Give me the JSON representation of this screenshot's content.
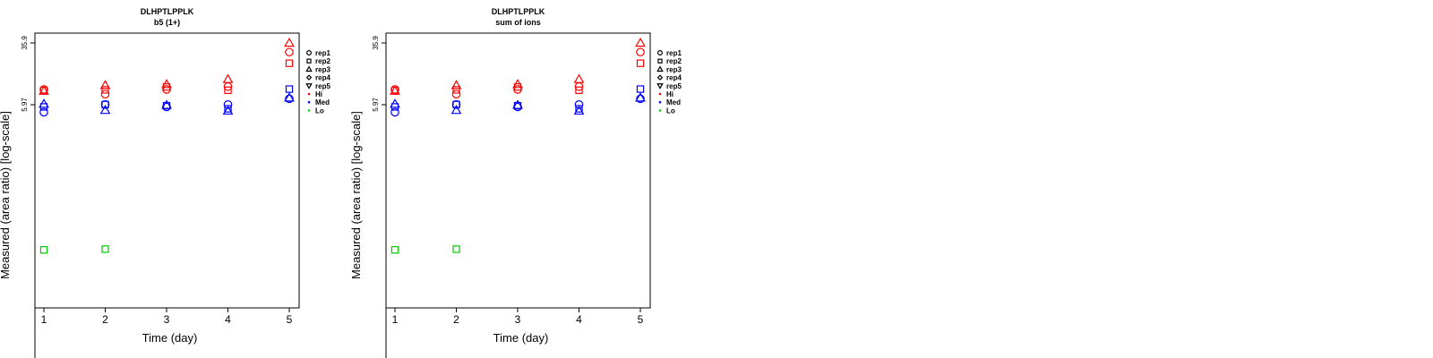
{
  "chart_data": [
    {
      "type": "scatter",
      "title": "DLHPTLPPLK",
      "subtitle": "b5 (1+)",
      "xlabel": "Time (day)",
      "ylabel": "Measured (area ratio) [log-scale]",
      "log_y": true,
      "x_ticks": [
        "1",
        "2",
        "3",
        "4",
        "5"
      ],
      "y_ticks": [
        "5.97",
        "35.9"
      ],
      "legend_position": "right",
      "legend": [
        {
          "label": "rep1",
          "marker": "circle"
        },
        {
          "label": "rep2",
          "marker": "square"
        },
        {
          "label": "rep3",
          "marker": "triangle"
        },
        {
          "label": "rep4",
          "marker": "diamond"
        },
        {
          "label": "rep5",
          "marker": "triangle-down"
        },
        {
          "label": "Hi",
          "dot_color": "#ff0000"
        },
        {
          "label": "Med",
          "dot_color": "#0000ff"
        },
        {
          "label": "Lo",
          "dot_color": "#00cc00"
        }
      ],
      "series": [
        {
          "name": "Hi",
          "color": "#ff0000",
          "points": [
            {
              "x": 1,
              "y": 9.3,
              "marker": "circle"
            },
            {
              "x": 1,
              "y": 9.0,
              "marker": "square"
            },
            {
              "x": 1,
              "y": 8.9,
              "marker": "triangle"
            },
            {
              "x": 2,
              "y": 8.1,
              "marker": "circle"
            },
            {
              "x": 2,
              "y": 9.2,
              "marker": "square"
            },
            {
              "x": 2,
              "y": 10.5,
              "marker": "triangle"
            },
            {
              "x": 3,
              "y": 9.3,
              "marker": "circle"
            },
            {
              "x": 3,
              "y": 10.0,
              "marker": "square"
            },
            {
              "x": 3,
              "y": 10.8,
              "marker": "triangle"
            },
            {
              "x": 4,
              "y": 10.1,
              "marker": "circle"
            },
            {
              "x": 4,
              "y": 9.1,
              "marker": "square"
            },
            {
              "x": 4,
              "y": 12.5,
              "marker": "triangle"
            },
            {
              "x": 5,
              "y": 27.5,
              "marker": "circle"
            },
            {
              "x": 5,
              "y": 19.9,
              "marker": "square"
            },
            {
              "x": 5,
              "y": 35.9,
              "marker": "triangle"
            }
          ]
        },
        {
          "name": "Med",
          "color": "#0000ff",
          "points": [
            {
              "x": 1,
              "y": 4.8,
              "marker": "circle"
            },
            {
              "x": 1,
              "y": 5.6,
              "marker": "square"
            },
            {
              "x": 1,
              "y": 6.1,
              "marker": "triangle"
            },
            {
              "x": 2,
              "y": 6.0,
              "marker": "circle"
            },
            {
              "x": 2,
              "y": 6.0,
              "marker": "square"
            },
            {
              "x": 2,
              "y": 5.1,
              "marker": "triangle"
            },
            {
              "x": 3,
              "y": 5.6,
              "marker": "circle"
            },
            {
              "x": 3,
              "y": 5.8,
              "marker": "square"
            },
            {
              "x": 3,
              "y": 5.9,
              "marker": "triangle"
            },
            {
              "x": 4,
              "y": 6.0,
              "marker": "circle"
            },
            {
              "x": 4,
              "y": 5.3,
              "marker": "square"
            },
            {
              "x": 4,
              "y": 5.0,
              "marker": "triangle"
            },
            {
              "x": 5,
              "y": 7.1,
              "marker": "circle"
            },
            {
              "x": 5,
              "y": 9.4,
              "marker": "square"
            },
            {
              "x": 5,
              "y": 7.3,
              "marker": "triangle"
            }
          ]
        },
        {
          "name": "Lo",
          "color": "#00cc00",
          "points": [
            {
              "x": 1,
              "y": 0.088,
              "marker": "square"
            },
            {
              "x": 2,
              "y": 0.09,
              "marker": "square"
            }
          ]
        }
      ]
    },
    {
      "type": "scatter",
      "title": "DLHPTLPPLK",
      "subtitle": "sum of ions",
      "xlabel": "Time (day)",
      "ylabel": "Measured (area ratio) [log-scale]",
      "log_y": true,
      "x_ticks": [
        "1",
        "2",
        "3",
        "4",
        "5"
      ],
      "y_ticks": [
        "5.97",
        "35.9"
      ],
      "legend_position": "right",
      "legend": [
        {
          "label": "rep1",
          "marker": "circle"
        },
        {
          "label": "rep2",
          "marker": "square"
        },
        {
          "label": "rep3",
          "marker": "triangle"
        },
        {
          "label": "rep4",
          "marker": "diamond"
        },
        {
          "label": "rep5",
          "marker": "triangle-down"
        },
        {
          "label": "Hi",
          "dot_color": "#ff0000"
        },
        {
          "label": "Med",
          "dot_color": "#0000ff"
        },
        {
          "label": "Lo",
          "dot_color": "#00cc00"
        }
      ],
      "series": [
        {
          "name": "Hi",
          "color": "#ff0000",
          "points": [
            {
              "x": 1,
              "y": 9.3,
              "marker": "circle"
            },
            {
              "x": 1,
              "y": 9.0,
              "marker": "square"
            },
            {
              "x": 1,
              "y": 8.9,
              "marker": "triangle"
            },
            {
              "x": 2,
              "y": 8.1,
              "marker": "circle"
            },
            {
              "x": 2,
              "y": 9.2,
              "marker": "square"
            },
            {
              "x": 2,
              "y": 10.5,
              "marker": "triangle"
            },
            {
              "x": 3,
              "y": 9.3,
              "marker": "circle"
            },
            {
              "x": 3,
              "y": 10.0,
              "marker": "square"
            },
            {
              "x": 3,
              "y": 10.8,
              "marker": "triangle"
            },
            {
              "x": 4,
              "y": 10.1,
              "marker": "circle"
            },
            {
              "x": 4,
              "y": 9.1,
              "marker": "square"
            },
            {
              "x": 4,
              "y": 12.5,
              "marker": "triangle"
            },
            {
              "x": 5,
              "y": 27.5,
              "marker": "circle"
            },
            {
              "x": 5,
              "y": 19.9,
              "marker": "square"
            },
            {
              "x": 5,
              "y": 35.9,
              "marker": "triangle"
            }
          ]
        },
        {
          "name": "Med",
          "color": "#0000ff",
          "points": [
            {
              "x": 1,
              "y": 4.8,
              "marker": "circle"
            },
            {
              "x": 1,
              "y": 5.6,
              "marker": "square"
            },
            {
              "x": 1,
              "y": 6.1,
              "marker": "triangle"
            },
            {
              "x": 2,
              "y": 6.0,
              "marker": "circle"
            },
            {
              "x": 2,
              "y": 6.0,
              "marker": "square"
            },
            {
              "x": 2,
              "y": 5.1,
              "marker": "triangle"
            },
            {
              "x": 3,
              "y": 5.6,
              "marker": "circle"
            },
            {
              "x": 3,
              "y": 5.8,
              "marker": "square"
            },
            {
              "x": 3,
              "y": 5.9,
              "marker": "triangle"
            },
            {
              "x": 4,
              "y": 6.0,
              "marker": "circle"
            },
            {
              "x": 4,
              "y": 5.3,
              "marker": "square"
            },
            {
              "x": 4,
              "y": 5.0,
              "marker": "triangle"
            },
            {
              "x": 5,
              "y": 7.1,
              "marker": "circle"
            },
            {
              "x": 5,
              "y": 9.4,
              "marker": "square"
            },
            {
              "x": 5,
              "y": 7.3,
              "marker": "triangle"
            }
          ]
        },
        {
          "name": "Lo",
          "color": "#00cc00",
          "points": [
            {
              "x": 1,
              "y": 0.088,
              "marker": "square"
            },
            {
              "x": 2,
              "y": 0.09,
              "marker": "square"
            }
          ]
        }
      ]
    }
  ]
}
